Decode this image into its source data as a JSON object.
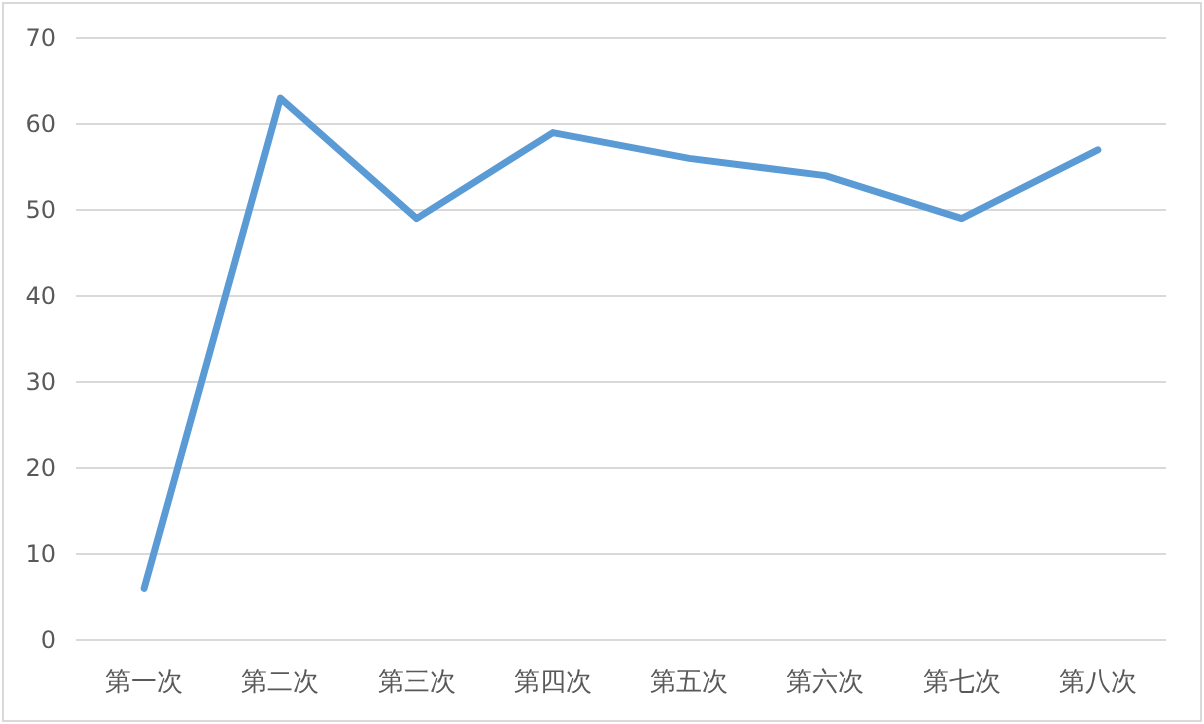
{
  "chart_data": {
    "type": "line",
    "categories": [
      "第一次",
      "第二次",
      "第三次",
      "第四次",
      "第五次",
      "第六次",
      "第七次",
      "第八次"
    ],
    "series": [
      {
        "color": "#5b9bd5",
        "values": [
          6,
          63,
          49,
          59,
          56,
          54,
          49,
          57
        ]
      }
    ],
    "ylim": [
      0,
      70
    ],
    "yticks": [
      0,
      10,
      20,
      30,
      40,
      50,
      60,
      70
    ],
    "grid": "y",
    "marker": "none",
    "line_style": "solid"
  }
}
